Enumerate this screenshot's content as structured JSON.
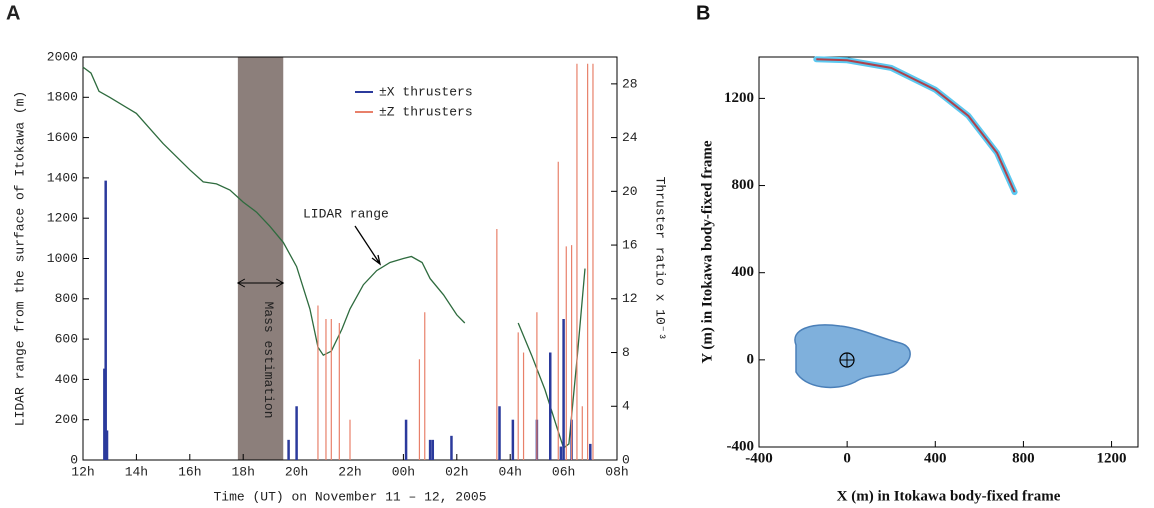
{
  "chart_data": [
    {
      "type": "line",
      "panel": "A",
      "x_label": "Time (UT) on November 11 – 12, 2005",
      "y_label": "LIDAR range from the surface of Itokawa (m)",
      "y2_label": "Thruster ratio x 10⁻³",
      "xlim": [
        12,
        32
      ],
      "xticks": [
        {
          "value": 12,
          "label": "12h"
        },
        {
          "value": 14,
          "label": "14h"
        },
        {
          "value": 16,
          "label": "16h"
        },
        {
          "value": 18,
          "label": "18h"
        },
        {
          "value": 20,
          "label": "20h"
        },
        {
          "value": 22,
          "label": "22h"
        },
        {
          "value": 24,
          "label": "00h"
        },
        {
          "value": 26,
          "label": "02h"
        },
        {
          "value": 28,
          "label": "04h"
        },
        {
          "value": 30,
          "label": "06h"
        },
        {
          "value": 32,
          "label": "08h"
        }
      ],
      "ylim": [
        0,
        2000
      ],
      "yticks": [
        0,
        200,
        400,
        600,
        800,
        1000,
        1200,
        1400,
        1600,
        1800,
        2000
      ],
      "y2lim": [
        0,
        30
      ],
      "y2ticks": [
        0,
        4,
        8,
        12,
        16,
        20,
        24,
        28
      ],
      "shaded_region": {
        "x": [
          17.8,
          19.5
        ],
        "label": "Mass estimation",
        "color": "#8c7f7b"
      },
      "annotation": "LIDAR range",
      "legend": "upper center",
      "series": [
        {
          "color": "#2e6b3e",
          "x": [
            12.0,
            12.3,
            12.6,
            13,
            14,
            15,
            16,
            16.5,
            17,
            17.5,
            18,
            18.5,
            19,
            19.5,
            20,
            20.5,
            20.8,
            21,
            21.3,
            21.7,
            22,
            22.5,
            23,
            23.5,
            24,
            24.3,
            24.7,
            25,
            25.5,
            26,
            26.3,
            27,
            28.3,
            28.8,
            29.3,
            29.8,
            30.0,
            30.2,
            30.5,
            30.8
          ],
          "values": [
            1950,
            1920,
            1830,
            1800,
            1720,
            1570,
            1440,
            1380,
            1370,
            1340,
            1280,
            1230,
            1160,
            1080,
            960,
            750,
            560,
            520,
            540,
            650,
            750,
            870,
            940,
            980,
            1000,
            1010,
            980,
            900,
            820,
            720,
            680,
            null,
            680,
            520,
            350,
            140,
            60,
            80,
            500,
            950
          ]
        },
        {
          "name": "±X thrusters",
          "color": "#2b3a9c",
          "axis": "y2",
          "x": [
            12.8,
            12.85,
            12.9,
            19.7,
            20.0,
            24.1,
            25.0,
            25.1,
            25.8,
            27.6,
            28.1,
            29.0,
            29.5,
            29.9,
            30.0,
            30.3,
            31.0
          ],
          "values": [
            6.8,
            20.8,
            2.2,
            1.5,
            4,
            3,
            1.5,
            1.5,
            1.8,
            4,
            3,
            3,
            8,
            1,
            10.5,
            3,
            1.2
          ]
        },
        {
          "name": "±Z thrusters",
          "color": "#e8806a",
          "axis": "y2",
          "x": [
            20.8,
            21.1,
            21.3,
            21.6,
            22.0,
            24.6,
            24.8,
            27.5,
            28.3,
            28.5,
            29.0,
            29.8,
            30.1,
            30.3,
            30.5,
            30.7,
            30.9,
            31.1
          ],
          "values": [
            11.5,
            10.5,
            10.5,
            10.2,
            3,
            7.5,
            11,
            17.2,
            9.5,
            8,
            11,
            22.2,
            15.9,
            16,
            29.5,
            4,
            29.5,
            29.5
          ]
        }
      ]
    },
    {
      "type": "line",
      "panel": "B",
      "x_label": "X (m) in Itokawa body-fixed frame",
      "y_label": "Y (m) in Itokawa body-fixed frame",
      "xlim": [
        -400,
        1320
      ],
      "xticks": [
        -400,
        0,
        400,
        800,
        1200
      ],
      "ylim": [
        -400,
        1390
      ],
      "yticks": [
        -400,
        0,
        400,
        800,
        1200
      ],
      "series": [
        {
          "color": "#b0404a",
          "outline_color": "#5bc8f0",
          "x": [
            -140,
            0,
            200,
            400,
            550,
            680,
            760
          ],
          "values": [
            1380,
            1375,
            1340,
            1240,
            1120,
            950,
            770
          ]
        }
      ]
    }
  ]
}
